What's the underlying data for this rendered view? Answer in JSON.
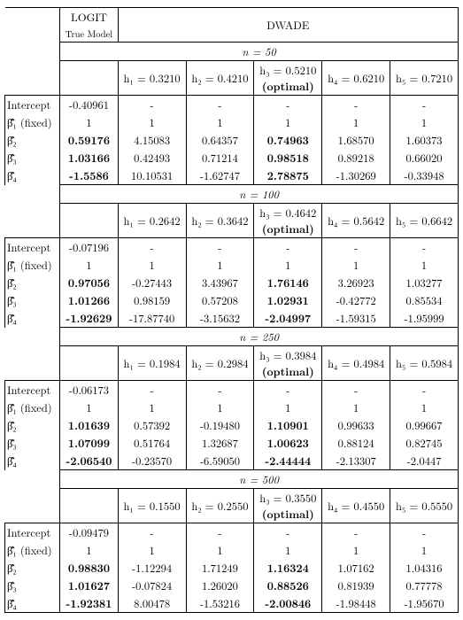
{
  "header": {
    "logit": "LOGIT",
    "truemodel": "True Model",
    "dwade": "DWADE"
  },
  "row_labels": {
    "intercept": "Intercept",
    "b1": "β̄̂₁ (fixed)",
    "b2": "β̄̂₂",
    "b3": "β̄̂₃",
    "b4": "β̄̂₄"
  },
  "optimal_label": "(optimal)",
  "blocks": [
    {
      "n_label": "n = 50",
      "h_labels": [
        "h₁ = 0.3210",
        "h₂ = 0.4210",
        "h₃ = 0.5210",
        "h₄ = 0.6210",
        "h₅ = 0.7210"
      ],
      "rows": [
        {
          "label_key": "intercept",
          "logit": "-0.40961",
          "vals": [
            "-",
            "-",
            "-",
            "-",
            "-"
          ]
        },
        {
          "label_key": "b1",
          "logit": "1",
          "vals": [
            "1",
            "1",
            "1",
            "1",
            "1"
          ]
        },
        {
          "label_key": "b2",
          "logit": "0.59176",
          "vals": [
            "4.15083",
            "0.64357",
            "0.74963",
            "1.68570",
            "1.60373"
          ],
          "logit_bold": true,
          "h3_bold": true
        },
        {
          "label_key": "b3",
          "logit": "1.03166",
          "vals": [
            "0.42493",
            "0.71214",
            "0.98518",
            "0.89218",
            "0.66020"
          ],
          "logit_bold": true,
          "h3_bold": true
        },
        {
          "label_key": "b4",
          "logit": "-1.5586",
          "vals": [
            "10.10531",
            "-1.62747",
            "2.78875",
            "-1.30269",
            "-0.33948"
          ],
          "logit_bold": true,
          "h3_bold": true
        }
      ]
    },
    {
      "n_label": "n = 100",
      "h_labels": [
        "h₁ = 0.2642",
        "h₂ = 0.3642",
        "h₃ = 0.4642",
        "h₄ = 0.5642",
        "h₅ = 0.6642"
      ],
      "rows": [
        {
          "label_key": "intercept",
          "logit": "-0.07196",
          "vals": [
            "-",
            "-",
            "-",
            "-",
            "-"
          ]
        },
        {
          "label_key": "b1",
          "logit": "1",
          "vals": [
            "1",
            "1",
            "1",
            "1",
            "1"
          ]
        },
        {
          "label_key": "b2",
          "logit": "0.97056",
          "vals": [
            "-0.27443",
            "3.43967",
            "1.76146",
            "3.26923",
            "1.03277"
          ],
          "logit_bold": true,
          "h3_bold": true
        },
        {
          "label_key": "b3",
          "logit": "1.01266",
          "vals": [
            "0.98159",
            "0.57208",
            "1.02931",
            "-0.42772",
            "0.85534"
          ],
          "logit_bold": true,
          "h3_bold": true
        },
        {
          "label_key": "b4",
          "logit": "-1.92629",
          "vals": [
            "-17.87740",
            "-3.15632",
            "-2.04997",
            "-1.59315",
            "-1.95999"
          ],
          "logit_bold": true,
          "h3_bold": true
        }
      ]
    },
    {
      "n_label": "n = 250",
      "h_labels": [
        "h₁ = 0.1984",
        "h₂ = 0.2984",
        "h₃ = 0.3984",
        "h₄ = 0.4984",
        "h₅ = 0.5984"
      ],
      "rows": [
        {
          "label_key": "intercept",
          "logit": "-0.06173",
          "vals": [
            "-",
            "-",
            "-",
            "-",
            "-"
          ]
        },
        {
          "label_key": "b1",
          "logit": "1",
          "vals": [
            "1",
            "1",
            "1",
            "1",
            "1"
          ]
        },
        {
          "label_key": "b2",
          "logit": "1.01639",
          "vals": [
            "0.57392",
            "-0.19480",
            "1.10901",
            "0.99633",
            "0.99667"
          ],
          "logit_bold": true,
          "h3_bold": true
        },
        {
          "label_key": "b3",
          "logit": "1.07099",
          "vals": [
            "0.51764",
            "1.32687",
            "1.00623",
            "0.88124",
            "0.82745"
          ],
          "logit_bold": true,
          "h3_bold": true
        },
        {
          "label_key": "b4",
          "logit": "-2.06540",
          "vals": [
            "-0.23570",
            "-6.59050",
            "-2.44444",
            "-2.13307",
            "-2.0447"
          ],
          "logit_bold": true,
          "h3_bold": true
        }
      ]
    },
    {
      "n_label": "n = 500",
      "h_labels": [
        "h₁ = 0.1550",
        "h₂ = 0.2550",
        "h₃ = 0.3550",
        "h₄ = 0.4550",
        "h₅ = 0.5550"
      ],
      "rows": [
        {
          "label_key": "intercept",
          "logit": "-0.09479",
          "vals": [
            "-",
            "-",
            "-",
            "-",
            "-"
          ]
        },
        {
          "label_key": "b1",
          "logit": "1",
          "vals": [
            "1",
            "1",
            "1",
            "1",
            "1"
          ]
        },
        {
          "label_key": "b2",
          "logit": "0.98830",
          "vals": [
            "-1.12294",
            "1.71249",
            "1.16324",
            "1.07162",
            "1.04316"
          ],
          "logit_bold": true,
          "h3_bold": true
        },
        {
          "label_key": "b3",
          "logit": "1.01627",
          "vals": [
            "-0.07824",
            "1.26020",
            "0.88526",
            "0.81939",
            "0.77778"
          ],
          "logit_bold": true,
          "h3_bold": true
        },
        {
          "label_key": "b4",
          "logit": "-1.92381",
          "vals": [
            "8.00478",
            "-1.53216",
            "-2.00846",
            "-1.98448",
            "-1.95670"
          ],
          "logit_bold": true,
          "h3_bold": true
        }
      ]
    }
  ]
}
